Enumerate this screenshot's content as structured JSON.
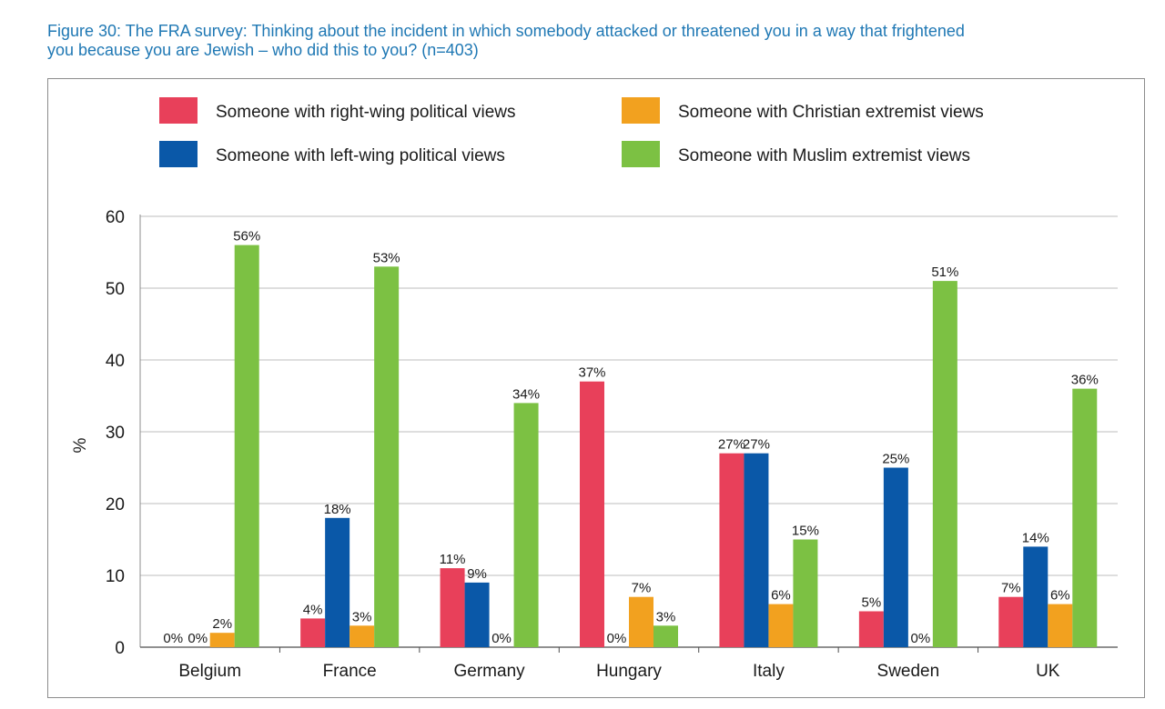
{
  "figure": {
    "title_line1": "Figure 30: The FRA survey: Thinking about the incident in which somebody attacked or threatened you in a way that frightened",
    "title_line2": "you because you are Jewish – who did this to you? (n=403)"
  },
  "chart_data": {
    "type": "bar",
    "title": "Figure 30: The FRA survey: Thinking about the incident in which somebody attacked or threatened you in a way that frightened you because you are Jewish – who did this to you? (n=403)",
    "xlabel": "",
    "ylabel": "%",
    "ylim": [
      0,
      60
    ],
    "yticks": [
      0,
      10,
      20,
      30,
      40,
      50,
      60
    ],
    "grid": true,
    "legend_position": "top",
    "categories": [
      "Belgium",
      "France",
      "Germany",
      "Hungary",
      "Italy",
      "Sweden",
      "UK"
    ],
    "series": [
      {
        "name": "Someone with right-wing political views",
        "color": "#e8405a",
        "values": [
          0,
          4,
          11,
          37,
          27,
          5,
          7
        ],
        "labels": [
          "0%",
          "4%",
          "11%",
          "37%",
          "27%",
          "5%",
          "7%"
        ]
      },
      {
        "name": "Someone with left-wing political views",
        "color": "#0a58a8",
        "values": [
          0,
          18,
          9,
          0,
          27,
          25,
          14
        ],
        "labels": [
          "0%",
          "18%",
          "9%",
          "0%",
          "27%",
          "25%",
          "14%"
        ]
      },
      {
        "name": "Someone with Christian extremist views",
        "color": "#f2a11f",
        "values": [
          2,
          3,
          0,
          7,
          6,
          0,
          6
        ],
        "labels": [
          "2%",
          "3%",
          "0%",
          "7%",
          "6%",
          "0%",
          "6%"
        ]
      },
      {
        "name": "Someone with Muslim extremist views",
        "color": "#7cc143",
        "values": [
          56,
          53,
          34,
          3,
          15,
          51,
          36
        ],
        "labels": [
          "56%",
          "53%",
          "34%",
          "3%",
          "15%",
          "51%",
          "36%"
        ]
      }
    ]
  }
}
